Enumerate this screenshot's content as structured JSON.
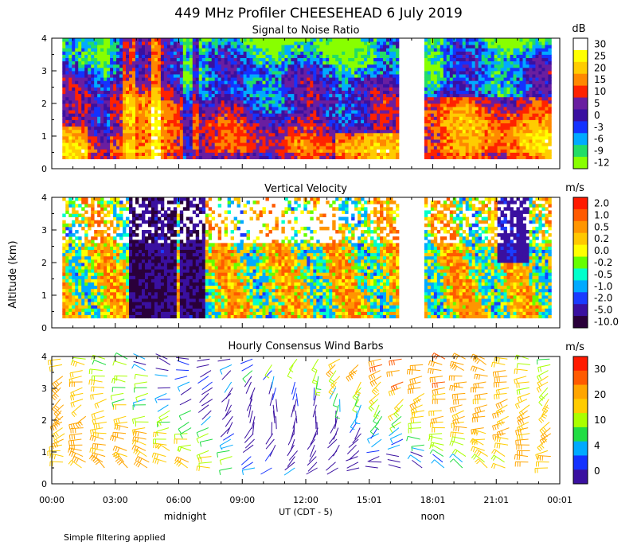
{
  "title": "449 MHz Profiler CHEESEHEAD  6 July 2019",
  "ylabel": "Altitude (km)",
  "xlabel": "UT  (CDT - 5)",
  "x_ticks": [
    "00:00",
    "03:00",
    "06:00",
    "09:00",
    "12:00",
    "15:01",
    "18:01",
    "21:01",
    "00:01"
  ],
  "local_labels": [
    {
      "text": "midnight",
      "hour": 6.3
    },
    {
      "text": "noon",
      "hour": 18.0
    }
  ],
  "footnote": "Simple filtering applied",
  "chart_data": [
    {
      "type": "heatmap",
      "title": "Signal to Noise Ratio",
      "unit": "dB",
      "xlim": [
        0,
        24
      ],
      "ylim": [
        0,
        4
      ],
      "y_ticks": [
        0,
        1,
        2,
        3,
        4
      ],
      "data_gap_hours": [
        16.55,
        17.55
      ],
      "data_start_hour": 0.5,
      "data_end_hour": 23.5,
      "data_bottom_km": 0.3,
      "colorbar": {
        "labels": [
          "30",
          "25",
          "20",
          "15",
          "10",
          "5",
          "0",
          "-3",
          "-6",
          "-9",
          "-12"
        ],
        "colors": [
          "#ffffff",
          "#ffff00",
          "#ffcc00",
          "#ff8800",
          "#ff2200",
          "#6a1ea0",
          "#3a10a0",
          "#1432ff",
          "#00aaff",
          "#22dd66",
          "#88ff00"
        ]
      }
    },
    {
      "type": "heatmap",
      "title": "Vertical Velocity",
      "unit": "m/s",
      "xlim": [
        0,
        24
      ],
      "ylim": [
        0,
        4
      ],
      "y_ticks": [
        0,
        1,
        2,
        3,
        4
      ],
      "data_gap_hours": [
        16.55,
        17.55
      ],
      "data_start_hour": 0.5,
      "data_end_hour": 23.5,
      "data_bottom_km": 0.3,
      "colorbar": {
        "labels": [
          "2.0",
          "1.0",
          "0.5",
          "0.2",
          "0.0",
          "-0.2",
          "-0.5",
          "-1.0",
          "-2.0",
          "-5.0",
          "-10.0"
        ],
        "colors": [
          "#ff1a00",
          "#ff5a00",
          "#ff9500",
          "#ffc800",
          "#ffff00",
          "#66ff00",
          "#00ffcc",
          "#00aaff",
          "#1a3cff",
          "#3a10a0",
          "#2a003a"
        ]
      }
    },
    {
      "type": "wind_barbs",
      "title": "Hourly Consensus Wind Barbs",
      "unit": "m/s",
      "xlim": [
        0,
        24
      ],
      "ylim": [
        0,
        4
      ],
      "y_ticks": [
        0,
        1,
        2,
        3,
        4
      ],
      "colorbar": {
        "labels": [
          "30",
          "20",
          "10",
          "4",
          "0"
        ],
        "colors": [
          "#ff1a00",
          "#ff5a00",
          "#ffa500",
          "#ffcc00",
          "#aaff00",
          "#22dd44",
          "#00aaff",
          "#1432ff",
          "#3a10a0"
        ]
      }
    }
  ]
}
